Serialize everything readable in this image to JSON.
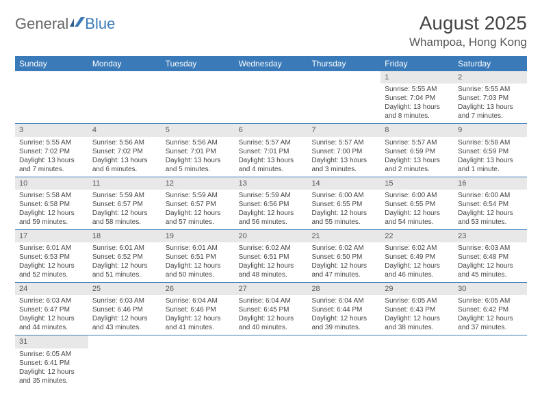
{
  "logo": {
    "text1": "General",
    "text2": "Blue"
  },
  "title": "August 2025",
  "location": "Whampoa, Hong Kong",
  "colors": {
    "header_bg": "#3a7ab8",
    "header_text": "#ffffff",
    "daynum_bg": "#e8e8e8",
    "border": "#3a7ab8",
    "text": "#444444",
    "page_bg": "#ffffff"
  },
  "day_names": [
    "Sunday",
    "Monday",
    "Tuesday",
    "Wednesday",
    "Thursday",
    "Friday",
    "Saturday"
  ],
  "weeks": [
    [
      {
        "n": "",
        "sr": "",
        "ss": "",
        "dl": ""
      },
      {
        "n": "",
        "sr": "",
        "ss": "",
        "dl": ""
      },
      {
        "n": "",
        "sr": "",
        "ss": "",
        "dl": ""
      },
      {
        "n": "",
        "sr": "",
        "ss": "",
        "dl": ""
      },
      {
        "n": "",
        "sr": "",
        "ss": "",
        "dl": ""
      },
      {
        "n": "1",
        "sr": "Sunrise: 5:55 AM",
        "ss": "Sunset: 7:04 PM",
        "dl": "Daylight: 13 hours and 8 minutes."
      },
      {
        "n": "2",
        "sr": "Sunrise: 5:55 AM",
        "ss": "Sunset: 7:03 PM",
        "dl": "Daylight: 13 hours and 7 minutes."
      }
    ],
    [
      {
        "n": "3",
        "sr": "Sunrise: 5:55 AM",
        "ss": "Sunset: 7:02 PM",
        "dl": "Daylight: 13 hours and 7 minutes."
      },
      {
        "n": "4",
        "sr": "Sunrise: 5:56 AM",
        "ss": "Sunset: 7:02 PM",
        "dl": "Daylight: 13 hours and 6 minutes."
      },
      {
        "n": "5",
        "sr": "Sunrise: 5:56 AM",
        "ss": "Sunset: 7:01 PM",
        "dl": "Daylight: 13 hours and 5 minutes."
      },
      {
        "n": "6",
        "sr": "Sunrise: 5:57 AM",
        "ss": "Sunset: 7:01 PM",
        "dl": "Daylight: 13 hours and 4 minutes."
      },
      {
        "n": "7",
        "sr": "Sunrise: 5:57 AM",
        "ss": "Sunset: 7:00 PM",
        "dl": "Daylight: 13 hours and 3 minutes."
      },
      {
        "n": "8",
        "sr": "Sunrise: 5:57 AM",
        "ss": "Sunset: 6:59 PM",
        "dl": "Daylight: 13 hours and 2 minutes."
      },
      {
        "n": "9",
        "sr": "Sunrise: 5:58 AM",
        "ss": "Sunset: 6:59 PM",
        "dl": "Daylight: 13 hours and 1 minute."
      }
    ],
    [
      {
        "n": "10",
        "sr": "Sunrise: 5:58 AM",
        "ss": "Sunset: 6:58 PM",
        "dl": "Daylight: 12 hours and 59 minutes."
      },
      {
        "n": "11",
        "sr": "Sunrise: 5:59 AM",
        "ss": "Sunset: 6:57 PM",
        "dl": "Daylight: 12 hours and 58 minutes."
      },
      {
        "n": "12",
        "sr": "Sunrise: 5:59 AM",
        "ss": "Sunset: 6:57 PM",
        "dl": "Daylight: 12 hours and 57 minutes."
      },
      {
        "n": "13",
        "sr": "Sunrise: 5:59 AM",
        "ss": "Sunset: 6:56 PM",
        "dl": "Daylight: 12 hours and 56 minutes."
      },
      {
        "n": "14",
        "sr": "Sunrise: 6:00 AM",
        "ss": "Sunset: 6:55 PM",
        "dl": "Daylight: 12 hours and 55 minutes."
      },
      {
        "n": "15",
        "sr": "Sunrise: 6:00 AM",
        "ss": "Sunset: 6:55 PM",
        "dl": "Daylight: 12 hours and 54 minutes."
      },
      {
        "n": "16",
        "sr": "Sunrise: 6:00 AM",
        "ss": "Sunset: 6:54 PM",
        "dl": "Daylight: 12 hours and 53 minutes."
      }
    ],
    [
      {
        "n": "17",
        "sr": "Sunrise: 6:01 AM",
        "ss": "Sunset: 6:53 PM",
        "dl": "Daylight: 12 hours and 52 minutes."
      },
      {
        "n": "18",
        "sr": "Sunrise: 6:01 AM",
        "ss": "Sunset: 6:52 PM",
        "dl": "Daylight: 12 hours and 51 minutes."
      },
      {
        "n": "19",
        "sr": "Sunrise: 6:01 AM",
        "ss": "Sunset: 6:51 PM",
        "dl": "Daylight: 12 hours and 50 minutes."
      },
      {
        "n": "20",
        "sr": "Sunrise: 6:02 AM",
        "ss": "Sunset: 6:51 PM",
        "dl": "Daylight: 12 hours and 48 minutes."
      },
      {
        "n": "21",
        "sr": "Sunrise: 6:02 AM",
        "ss": "Sunset: 6:50 PM",
        "dl": "Daylight: 12 hours and 47 minutes."
      },
      {
        "n": "22",
        "sr": "Sunrise: 6:02 AM",
        "ss": "Sunset: 6:49 PM",
        "dl": "Daylight: 12 hours and 46 minutes."
      },
      {
        "n": "23",
        "sr": "Sunrise: 6:03 AM",
        "ss": "Sunset: 6:48 PM",
        "dl": "Daylight: 12 hours and 45 minutes."
      }
    ],
    [
      {
        "n": "24",
        "sr": "Sunrise: 6:03 AM",
        "ss": "Sunset: 6:47 PM",
        "dl": "Daylight: 12 hours and 44 minutes."
      },
      {
        "n": "25",
        "sr": "Sunrise: 6:03 AM",
        "ss": "Sunset: 6:46 PM",
        "dl": "Daylight: 12 hours and 43 minutes."
      },
      {
        "n": "26",
        "sr": "Sunrise: 6:04 AM",
        "ss": "Sunset: 6:46 PM",
        "dl": "Daylight: 12 hours and 41 minutes."
      },
      {
        "n": "27",
        "sr": "Sunrise: 6:04 AM",
        "ss": "Sunset: 6:45 PM",
        "dl": "Daylight: 12 hours and 40 minutes."
      },
      {
        "n": "28",
        "sr": "Sunrise: 6:04 AM",
        "ss": "Sunset: 6:44 PM",
        "dl": "Daylight: 12 hours and 39 minutes."
      },
      {
        "n": "29",
        "sr": "Sunrise: 6:05 AM",
        "ss": "Sunset: 6:43 PM",
        "dl": "Daylight: 12 hours and 38 minutes."
      },
      {
        "n": "30",
        "sr": "Sunrise: 6:05 AM",
        "ss": "Sunset: 6:42 PM",
        "dl": "Daylight: 12 hours and 37 minutes."
      }
    ],
    [
      {
        "n": "31",
        "sr": "Sunrise: 6:05 AM",
        "ss": "Sunset: 6:41 PM",
        "dl": "Daylight: 12 hours and 35 minutes."
      },
      {
        "n": "",
        "sr": "",
        "ss": "",
        "dl": ""
      },
      {
        "n": "",
        "sr": "",
        "ss": "",
        "dl": ""
      },
      {
        "n": "",
        "sr": "",
        "ss": "",
        "dl": ""
      },
      {
        "n": "",
        "sr": "",
        "ss": "",
        "dl": ""
      },
      {
        "n": "",
        "sr": "",
        "ss": "",
        "dl": ""
      },
      {
        "n": "",
        "sr": "",
        "ss": "",
        "dl": ""
      }
    ]
  ]
}
